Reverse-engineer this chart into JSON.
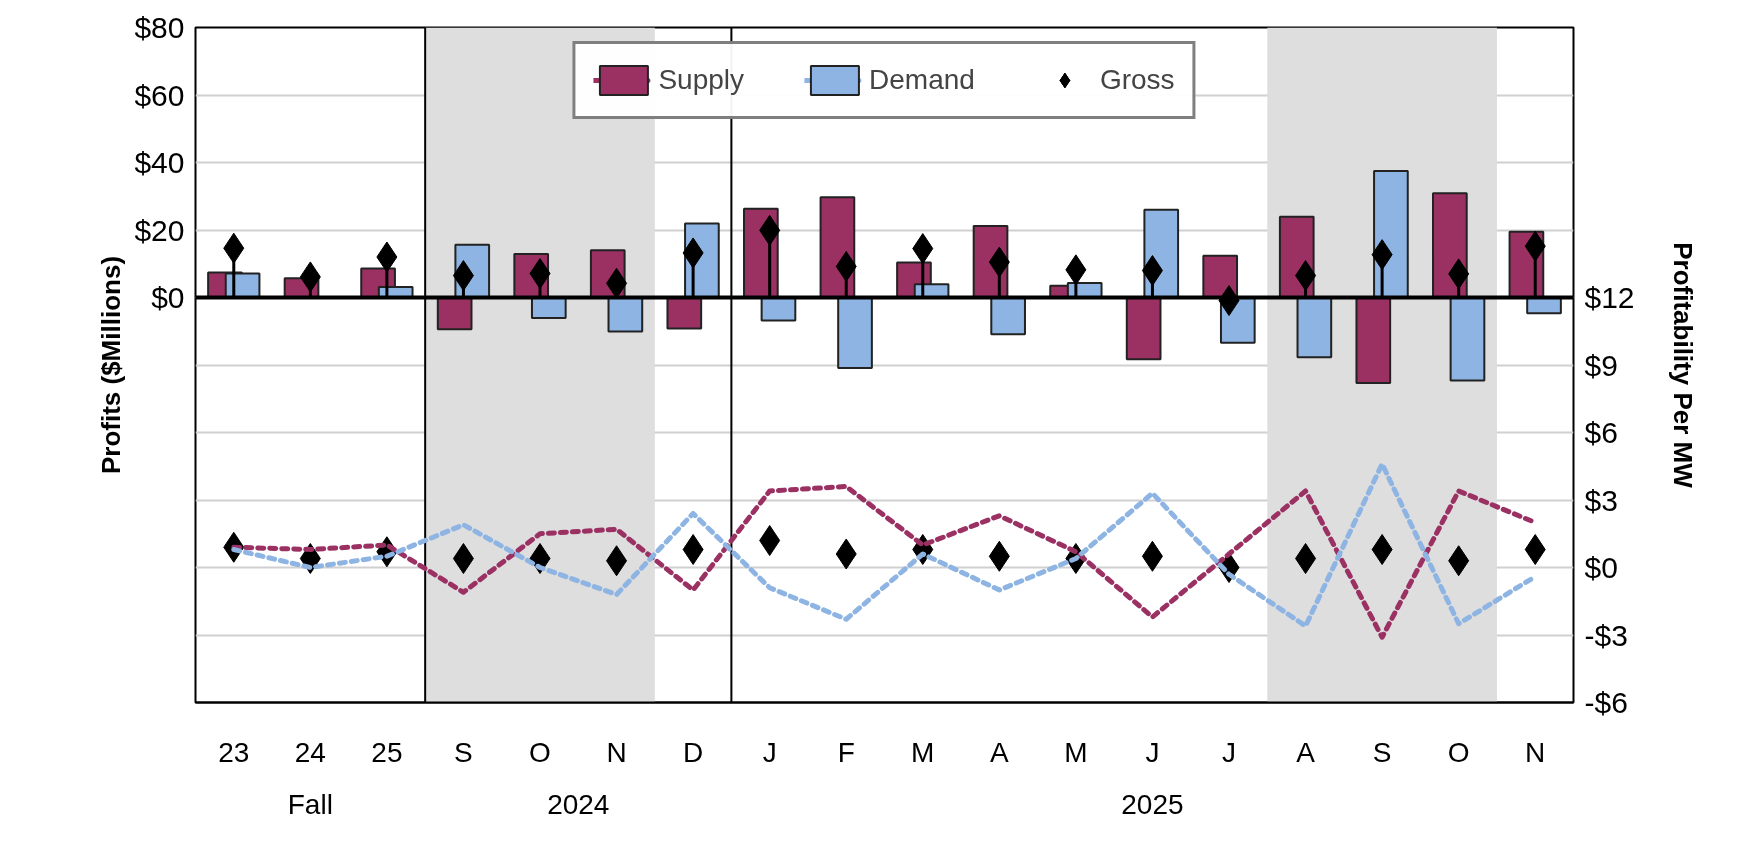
{
  "chart_data": {
    "type": "bar",
    "ylabel": "Profits ($Millions)",
    "y2label": "Profitability Per MW",
    "categories": [
      "23",
      "24",
      "25",
      "S",
      "O",
      "N",
      "D",
      "J",
      "F",
      "M",
      "A",
      "M",
      "J",
      "J",
      "A",
      "S",
      "O",
      "N"
    ],
    "ylim": [
      -120,
      80
    ],
    "yticks": [
      {
        "value": -120,
        "label": null
      },
      {
        "value": -100,
        "label": null
      },
      {
        "value": -80,
        "label": null
      },
      {
        "value": -60,
        "label": null
      },
      {
        "value": -40,
        "label": null
      },
      {
        "value": -20,
        "label": null
      },
      {
        "value": 0,
        "label": "$0"
      },
      {
        "value": 20,
        "label": "$20"
      },
      {
        "value": 40,
        "label": "$40"
      },
      {
        "value": 60,
        "label": "$60"
      },
      {
        "value": 80,
        "label": "$80"
      }
    ],
    "y2lim": [
      -6,
      24
    ],
    "y2ticks": [
      {
        "value": -6,
        "label": "-$6"
      },
      {
        "value": -3,
        "label": "-$3"
      },
      {
        "value": 0,
        "label": "$0"
      },
      {
        "value": 3,
        "label": "$3"
      },
      {
        "value": 6,
        "label": "$6"
      },
      {
        "value": 9,
        "label": "$9"
      },
      {
        "value": 12,
        "label": "$12"
      }
    ],
    "grid": "y",
    "legend": "top",
    "annotations": [
      "Fall",
      "2024",
      "2025"
    ],
    "series": [
      {
        "name": "Supply",
        "color": "#9b3163",
        "values": [
          7.4,
          5.7,
          8.6,
          -9.4,
          12.9,
          14,
          -9.2,
          26.3,
          29.7,
          10.4,
          21.2,
          3.5,
          -18.3,
          12.4,
          23.9,
          -25.3,
          30.9,
          19.5
        ]
      },
      {
        "name": "Demand",
        "color": "#8db4e2",
        "values": [
          7.1,
          null,
          3.1,
          15.6,
          -6.1,
          -10.1,
          21.9,
          -6.8,
          -20.9,
          3.9,
          -10.9,
          4.3,
          26,
          -13.4,
          -17.7,
          37.5,
          -24.6,
          -4.7
        ]
      },
      {
        "name": "Gross",
        "type": "lollipop",
        "color": "#000000",
        "marker": "diamond",
        "values": [
          14.6,
          6.1,
          12,
          6.5,
          7.1,
          4.2,
          13.2,
          19.9,
          9.2,
          14.5,
          10.5,
          8.2,
          8,
          -0.9,
          6.5,
          12.7,
          7,
          15.2
        ]
      },
      {
        "type": "line",
        "axis": "y2",
        "color": "#9b3163",
        "line_style": "dashed",
        "values": [
          0.9,
          0.8,
          1.0,
          -1.1,
          1.5,
          1.7,
          -1.0,
          3.4,
          3.6,
          1.0,
          2.3,
          0.7,
          -2.2,
          0.6,
          3.4,
          -3.1,
          3.4,
          2.0
        ]
      },
      {
        "type": "line",
        "axis": "y2",
        "color": "#8db4e2",
        "line_style": "dashed",
        "values": [
          0.8,
          0.0,
          0.5,
          1.9,
          0.0,
          -1.2,
          2.4,
          -0.9,
          -2.3,
          0.6,
          -1.0,
          0.4,
          3.3,
          -0.3,
          -2.6,
          4.6,
          -2.5,
          -0.4
        ]
      },
      {
        "type": "scatter",
        "axis": "y2",
        "color": "#000000",
        "marker": "diamond",
        "values": [
          0.9,
          0.4,
          0.7,
          0.4,
          0.4,
          0.3,
          0.8,
          1.2,
          0.6,
          0.8,
          0.5,
          0.4,
          0.5,
          0.0,
          0.4,
          0.8,
          0.3,
          0.8
        ]
      }
    ]
  }
}
